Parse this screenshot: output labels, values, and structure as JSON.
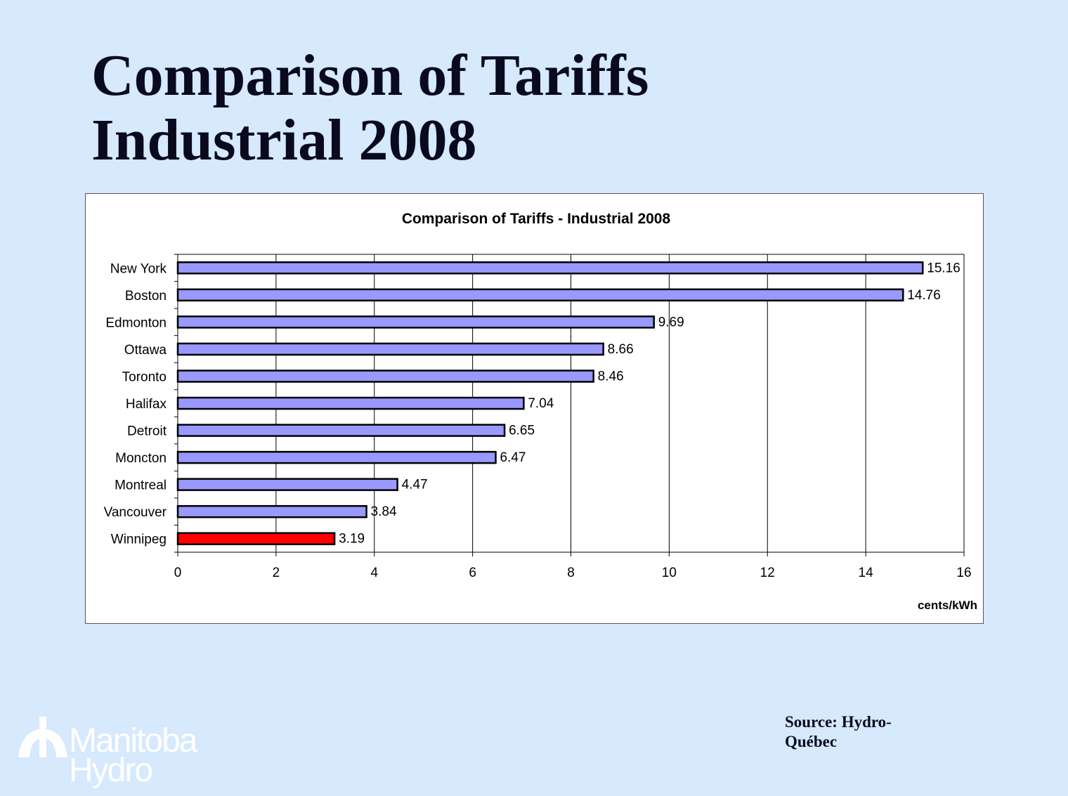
{
  "slide": {
    "title_line1": "Comparison of Tariffs",
    "title_line2": "Industrial 2008",
    "source": "Source: Hydro-Québec",
    "logo_line1": "Manitoba",
    "logo_line2": "Hydro"
  },
  "chart_data": {
    "type": "bar",
    "orientation": "horizontal",
    "title": "Comparison of Tariffs - Industrial 2008",
    "xlabel": "cents/kWh",
    "ylabel": "",
    "categories": [
      "New York",
      "Boston",
      "Edmonton",
      "Ottawa",
      "Toronto",
      "Halifax",
      "Detroit",
      "Moncton",
      "Montreal",
      "Vancouver",
      "Winnipeg"
    ],
    "values": [
      15.16,
      14.76,
      9.69,
      8.66,
      8.46,
      7.04,
      6.65,
      6.47,
      4.47,
      3.84,
      3.19
    ],
    "value_labels": [
      "15.16",
      "14.76",
      "9.69",
      "8.66",
      "8.46",
      "7.04",
      "6.65",
      "6.47",
      "4.47",
      "3.84",
      "3.19"
    ],
    "xlim": [
      0,
      16
    ],
    "xticks": [
      0,
      2,
      4,
      6,
      8,
      10,
      12,
      14,
      16
    ],
    "grid": true,
    "legend": "none",
    "colors": {
      "default": "#9999ff",
      "highlight": "#ff0000",
      "highlight_category": "Winnipeg",
      "outline": "#000000"
    }
  }
}
